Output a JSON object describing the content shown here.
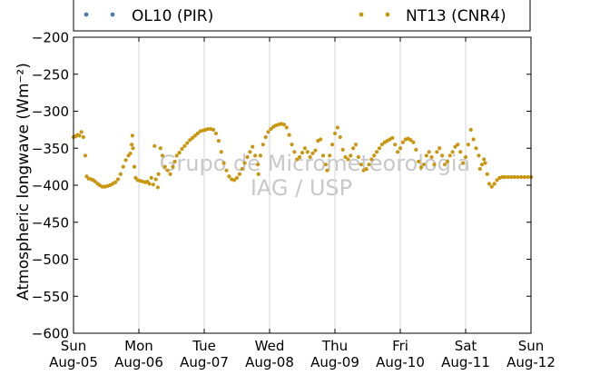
{
  "chart_data": {
    "type": "scatter",
    "ylabel": "Atmospheric longwave (Wm⁻²)",
    "xlabel": "",
    "ylim": [
      -600,
      -200
    ],
    "xlim": [
      0,
      7
    ],
    "x_ticks": [
      {
        "value": 0,
        "day": "Sun",
        "date": "Aug-05"
      },
      {
        "value": 1,
        "day": "Mon",
        "date": "Aug-06"
      },
      {
        "value": 2,
        "day": "Tue",
        "date": "Aug-07"
      },
      {
        "value": 3,
        "day": "Wed",
        "date": "Aug-08"
      },
      {
        "value": 4,
        "day": "Thu",
        "date": "Aug-09"
      },
      {
        "value": 5,
        "day": "Fri",
        "date": "Aug-10"
      },
      {
        "value": 6,
        "day": "Sat",
        "date": "Aug-11"
      },
      {
        "value": 7,
        "day": "Sun",
        "date": "Aug-12"
      }
    ],
    "y_ticks": [
      -200,
      -250,
      -300,
      -350,
      -400,
      -450,
      -500,
      -550,
      -600
    ],
    "grid": {
      "x": true,
      "y": false
    },
    "legend_position": "top",
    "watermark": [
      "Grupo de Micrometeorologia",
      "IAG / USP"
    ],
    "series": [
      {
        "name": "OL10 (PIR)",
        "color": "#4a7bab",
        "points": []
      },
      {
        "name": "NT13 (CNR4)",
        "color": "#c9970f",
        "points": [
          [
            0.0,
            -335
          ],
          [
            0.03,
            -334
          ],
          [
            0.06,
            -332
          ],
          [
            0.09,
            -333
          ],
          [
            0.12,
            -328
          ],
          [
            0.15,
            -335
          ],
          [
            0.18,
            -360
          ],
          [
            0.2,
            -388
          ],
          [
            0.23,
            -391
          ],
          [
            0.27,
            -392
          ],
          [
            0.3,
            -393
          ],
          [
            0.33,
            -395
          ],
          [
            0.37,
            -398
          ],
          [
            0.4,
            -400
          ],
          [
            0.44,
            -402
          ],
          [
            0.48,
            -402
          ],
          [
            0.52,
            -401
          ],
          [
            0.56,
            -400
          ],
          [
            0.6,
            -398
          ],
          [
            0.64,
            -396
          ],
          [
            0.68,
            -392
          ],
          [
            0.72,
            -385
          ],
          [
            0.76,
            -375
          ],
          [
            0.8,
            -366
          ],
          [
            0.84,
            -360
          ],
          [
            0.87,
            -357
          ],
          [
            0.89,
            -345
          ],
          [
            0.9,
            -333
          ],
          [
            0.91,
            -350
          ],
          [
            0.93,
            -375
          ],
          [
            0.95,
            -390
          ],
          [
            0.98,
            -393
          ],
          [
            1.02,
            -394
          ],
          [
            1.06,
            -395
          ],
          [
            1.1,
            -396
          ],
          [
            1.13,
            -395
          ],
          [
            1.16,
            -398
          ],
          [
            1.19,
            -390
          ],
          [
            1.22,
            -399
          ],
          [
            1.26,
            -392
          ],
          [
            1.29,
            -403
          ],
          [
            1.3,
            -385
          ],
          [
            1.24,
            -347
          ],
          [
            1.33,
            -350
          ],
          [
            1.36,
            -360
          ],
          [
            1.4,
            -375
          ],
          [
            1.44,
            -380
          ],
          [
            1.48,
            -385
          ],
          [
            1.52,
            -375
          ],
          [
            1.55,
            -368
          ],
          [
            1.58,
            -360
          ],
          [
            1.62,
            -356
          ],
          [
            1.66,
            -351
          ],
          [
            1.7,
            -347
          ],
          [
            1.74,
            -343
          ],
          [
            1.78,
            -339
          ],
          [
            1.82,
            -336
          ],
          [
            1.86,
            -333
          ],
          [
            1.9,
            -330
          ],
          [
            1.94,
            -327
          ],
          [
            1.98,
            -326
          ],
          [
            2.02,
            -325
          ],
          [
            2.06,
            -324
          ],
          [
            2.1,
            -324
          ],
          [
            2.14,
            -325
          ],
          [
            2.18,
            -330
          ],
          [
            2.22,
            -340
          ],
          [
            2.26,
            -355
          ],
          [
            2.3,
            -370
          ],
          [
            2.34,
            -380
          ],
          [
            2.38,
            -388
          ],
          [
            2.42,
            -392
          ],
          [
            2.46,
            -393
          ],
          [
            2.5,
            -390
          ],
          [
            2.54,
            -385
          ],
          [
            2.58,
            -378
          ],
          [
            2.62,
            -370
          ],
          [
            2.66,
            -362
          ],
          [
            2.7,
            -355
          ],
          [
            2.74,
            -348
          ],
          [
            2.78,
            -360
          ],
          [
            2.82,
            -372
          ],
          [
            2.83,
            -385
          ],
          [
            2.86,
            -360
          ],
          [
            2.9,
            -345
          ],
          [
            2.94,
            -335
          ],
          [
            2.98,
            -328
          ],
          [
            3.02,
            -324
          ],
          [
            3.06,
            -321
          ],
          [
            3.1,
            -319
          ],
          [
            3.14,
            -318
          ],
          [
            3.18,
            -317
          ],
          [
            3.22,
            -318
          ],
          [
            3.26,
            -322
          ],
          [
            3.3,
            -332
          ],
          [
            3.34,
            -345
          ],
          [
            3.38,
            -355
          ],
          [
            3.42,
            -365
          ],
          [
            3.46,
            -362
          ],
          [
            3.5,
            -356
          ],
          [
            3.54,
            -350
          ],
          [
            3.58,
            -355
          ],
          [
            3.62,
            -362
          ],
          [
            3.66,
            -357
          ],
          [
            3.7,
            -353
          ],
          [
            3.74,
            -340
          ],
          [
            3.78,
            -338
          ],
          [
            3.82,
            -360
          ],
          [
            3.86,
            -372
          ],
          [
            3.88,
            -380
          ],
          [
            3.92,
            -360
          ],
          [
            3.96,
            -345
          ],
          [
            4.0,
            -330
          ],
          [
            4.04,
            -322
          ],
          [
            4.08,
            -335
          ],
          [
            4.12,
            -352
          ],
          [
            4.16,
            -362
          ],
          [
            4.2,
            -365
          ],
          [
            4.24,
            -360
          ],
          [
            4.28,
            -350
          ],
          [
            4.32,
            -345
          ],
          [
            4.36,
            -362
          ],
          [
            4.4,
            -372
          ],
          [
            4.44,
            -380
          ],
          [
            4.48,
            -378
          ],
          [
            4.52,
            -372
          ],
          [
            4.56,
            -365
          ],
          [
            4.6,
            -360
          ],
          [
            4.64,
            -355
          ],
          [
            4.68,
            -350
          ],
          [
            4.72,
            -345
          ],
          [
            4.76,
            -342
          ],
          [
            4.8,
            -340
          ],
          [
            4.84,
            -338
          ],
          [
            4.88,
            -336
          ],
          [
            4.92,
            -345
          ],
          [
            4.96,
            -355
          ],
          [
            5.0,
            -350
          ],
          [
            5.04,
            -342
          ],
          [
            5.08,
            -338
          ],
          [
            5.12,
            -337
          ],
          [
            5.16,
            -339
          ],
          [
            5.2,
            -342
          ],
          [
            5.24,
            -352
          ],
          [
            5.28,
            -368
          ],
          [
            5.32,
            -376
          ],
          [
            5.36,
            -372
          ],
          [
            5.4,
            -360
          ],
          [
            5.44,
            -355
          ],
          [
            5.48,
            -362
          ],
          [
            5.52,
            -372
          ],
          [
            5.56,
            -355
          ],
          [
            5.6,
            -350
          ],
          [
            5.64,
            -360
          ],
          [
            5.68,
            -372
          ],
          [
            5.72,
            -368
          ],
          [
            5.76,
            -360
          ],
          [
            5.8,
            -355
          ],
          [
            5.84,
            -348
          ],
          [
            5.88,
            -345
          ],
          [
            5.92,
            -355
          ],
          [
            5.96,
            -370
          ],
          [
            6.0,
            -362
          ],
          [
            6.04,
            -345
          ],
          [
            6.08,
            -325
          ],
          [
            6.12,
            -338
          ],
          [
            6.16,
            -350
          ],
          [
            6.2,
            -360
          ],
          [
            6.22,
            -378
          ],
          [
            6.25,
            -372
          ],
          [
            6.28,
            -365
          ],
          [
            6.3,
            -370
          ],
          [
            6.33,
            -385
          ],
          [
            6.36,
            -398
          ],
          [
            6.4,
            -402
          ],
          [
            6.44,
            -398
          ],
          [
            6.48,
            -393
          ],
          [
            6.52,
            -390
          ],
          [
            6.56,
            -389
          ],
          [
            6.6,
            -389
          ],
          [
            6.65,
            -389
          ],
          [
            6.7,
            -389
          ],
          [
            6.75,
            -389
          ],
          [
            6.8,
            -389
          ],
          [
            6.85,
            -389
          ],
          [
            6.9,
            -389
          ],
          [
            6.95,
            -389
          ],
          [
            7.0,
            -389
          ]
        ]
      }
    ]
  }
}
